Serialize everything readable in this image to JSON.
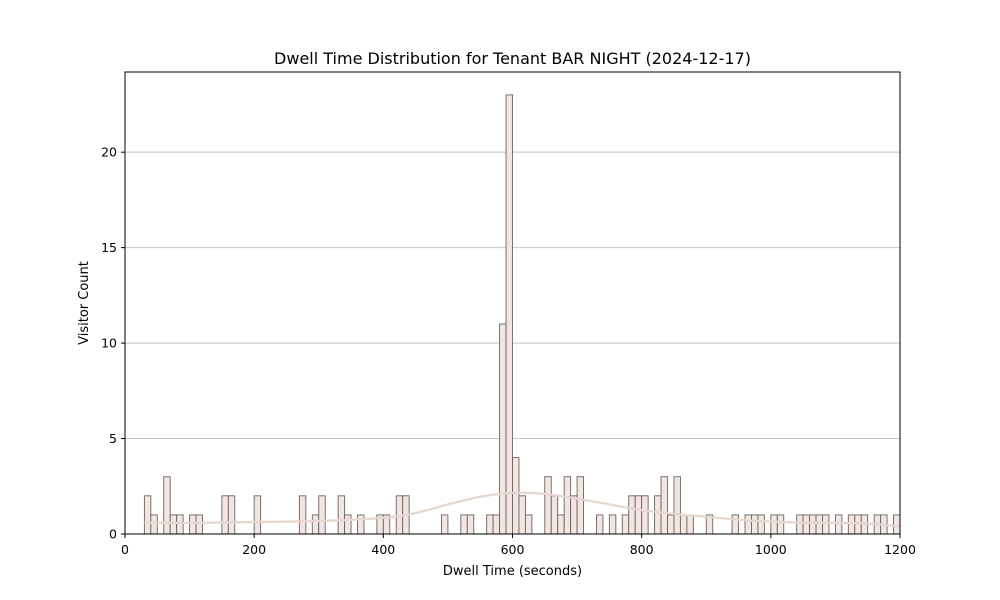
{
  "chart_data": {
    "type": "bar",
    "title": "Dwell Time Distribution for Tenant BAR NIGHT (2024-12-17)",
    "xlabel": "Dwell Time (seconds)",
    "ylabel": "Visitor Count",
    "xlim": [
      0,
      1200
    ],
    "ylim": [
      0,
      24.2
    ],
    "xticks": [
      0,
      200,
      400,
      600,
      800,
      1000,
      1200
    ],
    "yticks": [
      0,
      5,
      10,
      15,
      20
    ],
    "grid": "horizontal",
    "bin_width": 10,
    "bins": [
      {
        "x": 30,
        "count": 2
      },
      {
        "x": 40,
        "count": 1
      },
      {
        "x": 60,
        "count": 3
      },
      {
        "x": 70,
        "count": 1
      },
      {
        "x": 80,
        "count": 1
      },
      {
        "x": 100,
        "count": 1
      },
      {
        "x": 110,
        "count": 1
      },
      {
        "x": 150,
        "count": 2
      },
      {
        "x": 160,
        "count": 2
      },
      {
        "x": 200,
        "count": 2
      },
      {
        "x": 270,
        "count": 2
      },
      {
        "x": 290,
        "count": 1
      },
      {
        "x": 300,
        "count": 2
      },
      {
        "x": 330,
        "count": 2
      },
      {
        "x": 340,
        "count": 1
      },
      {
        "x": 360,
        "count": 1
      },
      {
        "x": 390,
        "count": 1
      },
      {
        "x": 400,
        "count": 1
      },
      {
        "x": 420,
        "count": 2
      },
      {
        "x": 430,
        "count": 2
      },
      {
        "x": 490,
        "count": 1
      },
      {
        "x": 520,
        "count": 1
      },
      {
        "x": 530,
        "count": 1
      },
      {
        "x": 560,
        "count": 1
      },
      {
        "x": 570,
        "count": 1
      },
      {
        "x": 580,
        "count": 11
      },
      {
        "x": 590,
        "count": 23
      },
      {
        "x": 600,
        "count": 4
      },
      {
        "x": 610,
        "count": 2
      },
      {
        "x": 620,
        "count": 1
      },
      {
        "x": 650,
        "count": 3
      },
      {
        "x": 660,
        "count": 2
      },
      {
        "x": 670,
        "count": 1
      },
      {
        "x": 680,
        "count": 3
      },
      {
        "x": 690,
        "count": 2
      },
      {
        "x": 700,
        "count": 3
      },
      {
        "x": 730,
        "count": 1
      },
      {
        "x": 750,
        "count": 1
      },
      {
        "x": 770,
        "count": 1
      },
      {
        "x": 780,
        "count": 2
      },
      {
        "x": 790,
        "count": 2
      },
      {
        "x": 800,
        "count": 2
      },
      {
        "x": 820,
        "count": 2
      },
      {
        "x": 830,
        "count": 3
      },
      {
        "x": 840,
        "count": 1
      },
      {
        "x": 850,
        "count": 3
      },
      {
        "x": 860,
        "count": 1
      },
      {
        "x": 870,
        "count": 1
      },
      {
        "x": 900,
        "count": 1
      },
      {
        "x": 940,
        "count": 1
      },
      {
        "x": 960,
        "count": 1
      },
      {
        "x": 970,
        "count": 1
      },
      {
        "x": 980,
        "count": 1
      },
      {
        "x": 1000,
        "count": 1
      },
      {
        "x": 1010,
        "count": 1
      },
      {
        "x": 1040,
        "count": 1
      },
      {
        "x": 1050,
        "count": 1
      },
      {
        "x": 1060,
        "count": 1
      },
      {
        "x": 1070,
        "count": 1
      },
      {
        "x": 1080,
        "count": 1
      },
      {
        "x": 1100,
        "count": 1
      },
      {
        "x": 1120,
        "count": 1
      },
      {
        "x": 1130,
        "count": 1
      },
      {
        "x": 1140,
        "count": 1
      },
      {
        "x": 1160,
        "count": 1
      },
      {
        "x": 1170,
        "count": 1
      },
      {
        "x": 1190,
        "count": 1
      }
    ],
    "kde_curve": {
      "x": [
        30,
        100,
        200,
        300,
        400,
        450,
        500,
        550,
        600,
        650,
        700,
        750,
        800,
        850,
        900,
        950,
        1000,
        1050,
        1100,
        1150,
        1200
      ],
      "y": [
        0.6,
        0.58,
        0.63,
        0.68,
        0.85,
        1.1,
        1.55,
        1.95,
        2.15,
        2.1,
        1.85,
        1.55,
        1.25,
        1.05,
        0.9,
        0.75,
        0.65,
        0.6,
        0.58,
        0.55,
        0.4
      ]
    },
    "colors": {
      "bar_fill": "#f2e6e2",
      "bar_edge": "#6e6262",
      "kde_line": "#e6d6cf",
      "grid": "#c4c4c4"
    }
  }
}
